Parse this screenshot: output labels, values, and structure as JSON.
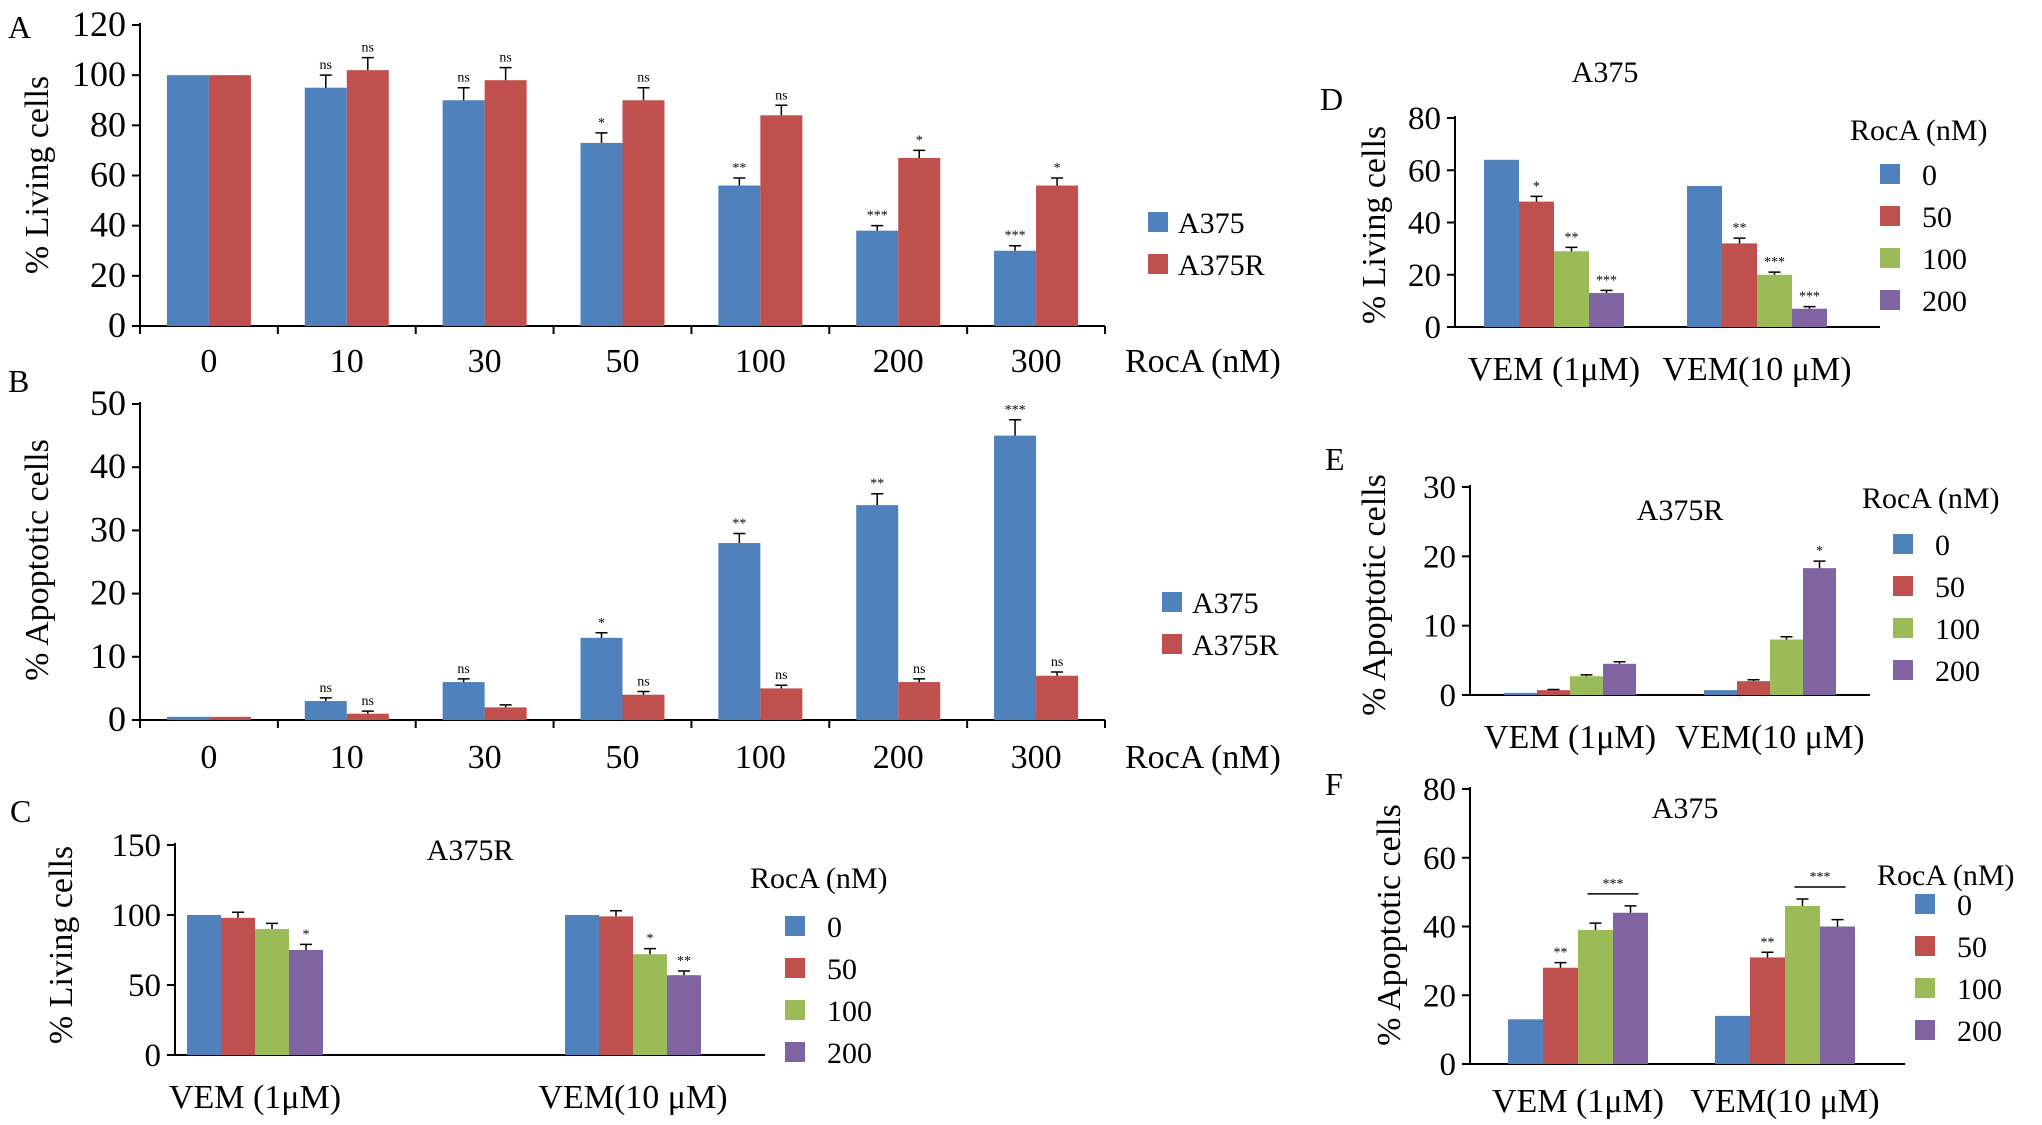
{
  "colors": {
    "blue": "#4F81BD",
    "red": "#C0504D",
    "green": "#9BBB59",
    "purple": "#8064A2"
  },
  "chart_data": [
    {
      "id": "A",
      "panel_letter": "A",
      "type": "bar",
      "title": "",
      "categories": [
        "0",
        "10",
        "30",
        "50",
        "100",
        "200",
        "300"
      ],
      "xlabel": "RocA (nM)",
      "ylabel": "% Living cells",
      "ylim": [
        0,
        120
      ],
      "yticks": [
        0,
        20,
        40,
        60,
        80,
        100,
        120
      ],
      "legend_title": "",
      "series": [
        {
          "name": "A375",
          "color": "#4F81BD",
          "values": [
            100,
            95,
            90,
            73,
            56,
            38,
            30
          ],
          "errors": [
            0,
            5,
            5,
            4,
            3,
            2,
            2
          ],
          "significance": [
            "",
            "ns",
            "ns",
            "*",
            "**",
            "***",
            "***"
          ]
        },
        {
          "name": "A375R",
          "color": "#C0504D",
          "values": [
            100,
            102,
            98,
            90,
            84,
            67,
            56
          ],
          "errors": [
            0,
            5,
            5,
            5,
            4,
            3,
            3
          ],
          "significance": [
            "",
            "ns",
            "ns",
            "ns",
            "ns",
            "*",
            "*"
          ]
        }
      ],
      "bracket_significance": []
    },
    {
      "id": "B",
      "panel_letter": "B",
      "type": "bar",
      "title": "",
      "categories": [
        "0",
        "10",
        "30",
        "50",
        "100",
        "200",
        "300"
      ],
      "xlabel": "RocA (nM)",
      "ylabel": "% Apoptotic cells",
      "ylim": [
        0,
        50
      ],
      "yticks": [
        0,
        10,
        20,
        30,
        40,
        50
      ],
      "legend_title": "",
      "series": [
        {
          "name": "A375",
          "color": "#4F81BD",
          "values": [
            0.5,
            3,
            6,
            13,
            28,
            34,
            45
          ],
          "errors": [
            0,
            0.5,
            0.5,
            0.8,
            1.5,
            1.8,
            2.5
          ],
          "significance": [
            "",
            "ns",
            "ns",
            "*",
            "**",
            "**",
            "***"
          ]
        },
        {
          "name": "A375R",
          "color": "#C0504D",
          "values": [
            0.5,
            1,
            2,
            4,
            5,
            6,
            7
          ],
          "errors": [
            0,
            0.4,
            0.4,
            0.5,
            0.5,
            0.5,
            0.6
          ],
          "significance": [
            "",
            "ns",
            "",
            "ns",
            "ns",
            "ns",
            "ns"
          ]
        }
      ],
      "bracket_significance": []
    },
    {
      "id": "C",
      "panel_letter": "C",
      "type": "bar",
      "title": "A375R",
      "categories": [
        "VEM (1μM)",
        "VEM(10 μM)"
      ],
      "xlabel": "",
      "ylabel": "% Living cells",
      "ylim": [
        0,
        150
      ],
      "yticks": [
        0,
        50,
        100,
        150
      ],
      "legend_title": "RocA (nM)",
      "series": [
        {
          "name": "0",
          "color": "#4F81BD",
          "values": [
            100,
            100
          ],
          "errors": [
            0,
            0
          ],
          "significance": [
            "",
            ""
          ]
        },
        {
          "name": "50",
          "color": "#C0504D",
          "values": [
            98,
            99
          ],
          "errors": [
            4,
            4
          ],
          "significance": [
            "",
            ""
          ]
        },
        {
          "name": "100",
          "color": "#9BBB59",
          "values": [
            90,
            72
          ],
          "errors": [
            4,
            4
          ],
          "significance": [
            "",
            "*"
          ]
        },
        {
          "name": "200",
          "color": "#8064A2",
          "values": [
            75,
            57
          ],
          "errors": [
            4,
            3
          ],
          "significance": [
            "*",
            "**"
          ]
        }
      ],
      "bracket_significance": []
    },
    {
      "id": "D",
      "panel_letter": "D",
      "type": "bar",
      "title": "A375",
      "categories": [
        "VEM (1μM)",
        "VEM(10 μM)"
      ],
      "xlabel": "",
      "ylabel": "% Living cells",
      "ylim": [
        0,
        80
      ],
      "yticks": [
        0,
        20,
        40,
        60,
        80
      ],
      "legend_title": "RocA (nM)",
      "series": [
        {
          "name": "0",
          "color": "#4F81BD",
          "values": [
            64,
            54
          ],
          "errors": [
            0,
            0
          ],
          "significance": [
            "",
            ""
          ]
        },
        {
          "name": "50",
          "color": "#C0504D",
          "values": [
            48,
            32
          ],
          "errors": [
            2,
            2
          ],
          "significance": [
            "*",
            "**"
          ]
        },
        {
          "name": "100",
          "color": "#9BBB59",
          "values": [
            29,
            20
          ],
          "errors": [
            1.5,
            1
          ],
          "significance": [
            "**",
            "***"
          ]
        },
        {
          "name": "200",
          "color": "#8064A2",
          "values": [
            13,
            7
          ],
          "errors": [
            1,
            0.8
          ],
          "significance": [
            "***",
            "***"
          ]
        }
      ],
      "bracket_significance": []
    },
    {
      "id": "E",
      "panel_letter": "E",
      "type": "bar",
      "title": "A375R",
      "categories": [
        "VEM (1μM)",
        "VEM(10 μM)"
      ],
      "xlabel": "",
      "ylabel": "% Apoptotic cells",
      "ylim": [
        0,
        30
      ],
      "yticks": [
        0,
        10,
        20,
        30
      ],
      "legend_title": "RocA (nM)",
      "series": [
        {
          "name": "0",
          "color": "#4F81BD",
          "values": [
            0.3,
            0.7
          ],
          "errors": [
            0,
            0
          ],
          "significance": [
            "",
            ""
          ]
        },
        {
          "name": "50",
          "color": "#C0504D",
          "values": [
            0.7,
            2
          ],
          "errors": [
            0.1,
            0.2
          ],
          "significance": [
            "",
            ""
          ]
        },
        {
          "name": "100",
          "color": "#9BBB59",
          "values": [
            2.7,
            8
          ],
          "errors": [
            0.2,
            0.4
          ],
          "significance": [
            "",
            ""
          ]
        },
        {
          "name": "200",
          "color": "#8064A2",
          "values": [
            4.5,
            18.3
          ],
          "errors": [
            0.3,
            1.0
          ],
          "significance": [
            "",
            "*"
          ]
        }
      ],
      "bracket_significance": []
    },
    {
      "id": "F",
      "panel_letter": "F",
      "type": "bar",
      "title": "A375",
      "categories": [
        "VEM (1μM)",
        "VEM(10 μM)"
      ],
      "xlabel": "",
      "ylabel": "% Apoptotic cells",
      "ylim": [
        0,
        80
      ],
      "yticks": [
        0,
        20,
        40,
        60,
        80
      ],
      "legend_title": "RocA (nM)",
      "series": [
        {
          "name": "0",
          "color": "#4F81BD",
          "values": [
            13,
            14
          ],
          "errors": [
            0,
            0
          ],
          "significance": [
            "",
            ""
          ]
        },
        {
          "name": "50",
          "color": "#C0504D",
          "values": [
            28,
            31
          ],
          "errors": [
            1.5,
            1.5
          ],
          "significance": [
            "**",
            "**"
          ]
        },
        {
          "name": "100",
          "color": "#9BBB59",
          "values": [
            39,
            46
          ],
          "errors": [
            2,
            2
          ],
          "significance": [
            "",
            ""
          ]
        },
        {
          "name": "200",
          "color": "#8064A2",
          "values": [
            44,
            40
          ],
          "errors": [
            2,
            2
          ],
          "significance": [
            "",
            ""
          ]
        }
      ],
      "bracket_significance": [
        {
          "category": 0,
          "from_series": 2,
          "to_series": 3,
          "label": "***"
        },
        {
          "category": 1,
          "from_series": 2,
          "to_series": 3,
          "label": "***"
        }
      ]
    }
  ]
}
